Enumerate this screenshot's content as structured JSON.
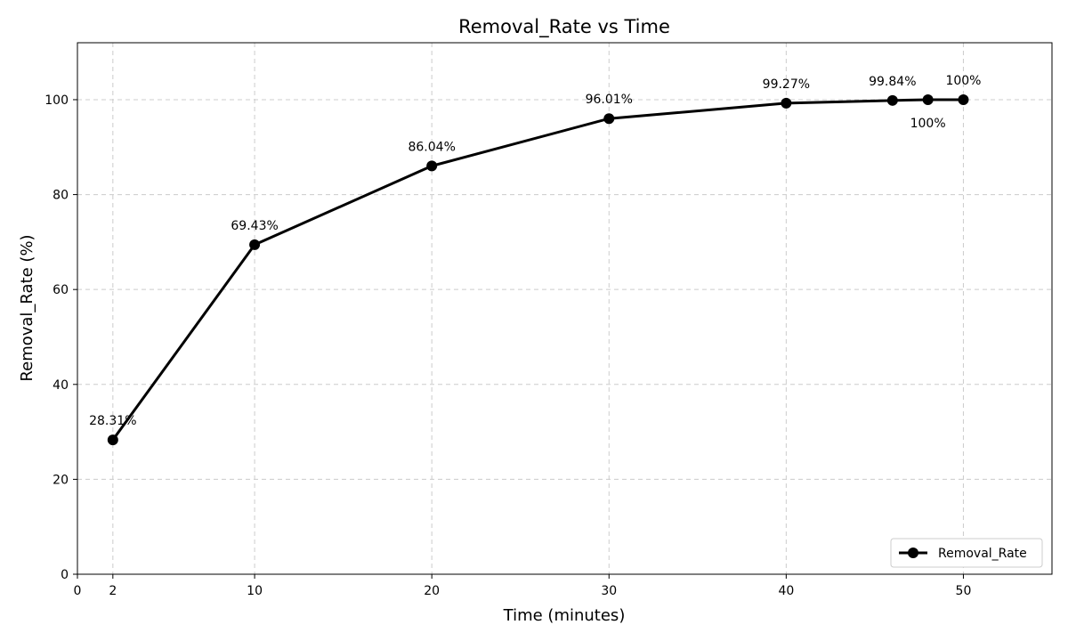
{
  "chart_data": {
    "type": "line",
    "title": "Removal_Rate vs Time",
    "xlabel": "Time (minutes)",
    "ylabel": "Removal_Rate (%)",
    "xlim": [
      0,
      55
    ],
    "ylim": [
      0,
      112
    ],
    "xticks": [
      0,
      2,
      10,
      20,
      30,
      40,
      50
    ],
    "yticks": [
      0,
      20,
      40,
      60,
      80,
      100
    ],
    "grid": true,
    "legend_position": "bottom-right",
    "series": [
      {
        "name": "Removal_Rate",
        "color": "#000000",
        "marker": "circle",
        "x": [
          2,
          10,
          20,
          30,
          40,
          46,
          48,
          50
        ],
        "y": [
          28.31,
          69.43,
          86.04,
          96.01,
          99.27,
          99.84,
          100,
          100
        ]
      }
    ],
    "data_labels": [
      {
        "x": 2,
        "y": 28.31,
        "text": "28.31%",
        "placement": "above"
      },
      {
        "x": 10,
        "y": 69.43,
        "text": "69.43%",
        "placement": "above"
      },
      {
        "x": 20,
        "y": 86.04,
        "text": "86.04%",
        "placement": "above"
      },
      {
        "x": 30,
        "y": 96.01,
        "text": "96.01%",
        "placement": "above"
      },
      {
        "x": 40,
        "y": 99.27,
        "text": "99.27%",
        "placement": "above"
      },
      {
        "x": 46,
        "y": 99.84,
        "text": "99.84%",
        "placement": "above"
      },
      {
        "x": 48,
        "y": 100,
        "text": "100%",
        "placement": "below"
      },
      {
        "x": 50,
        "y": 100,
        "text": "100%",
        "placement": "above"
      }
    ]
  }
}
